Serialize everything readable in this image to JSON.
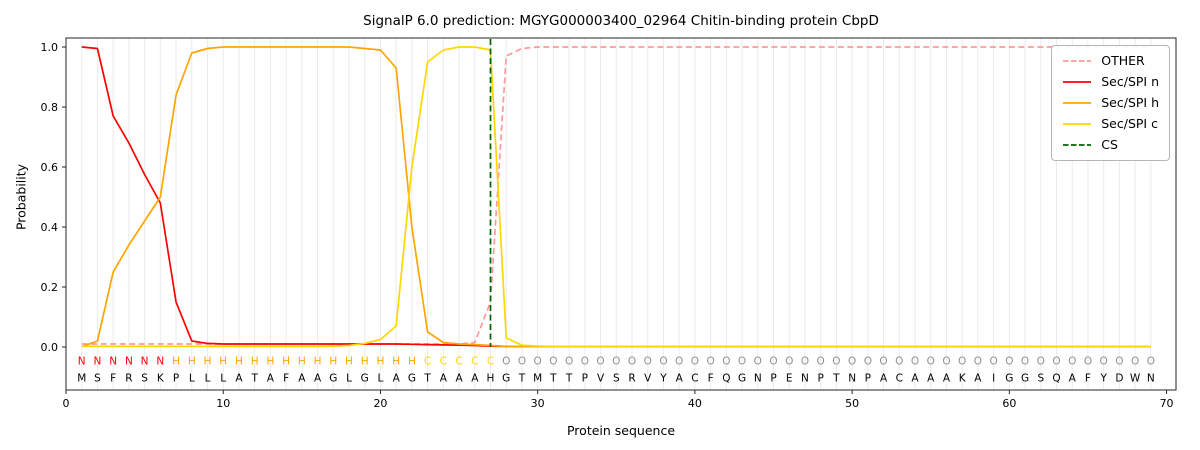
{
  "title": "SignalP 6.0 prediction: MGYG000003400_02964 Chitin-binding protein CbpD",
  "chart_data": {
    "type": "line",
    "title": "SignalP 6.0 prediction: MGYG000003400_02964 Chitin-binding protein CbpD",
    "xlabel": "Protein sequence",
    "ylabel": "Probability",
    "xlim": [
      0,
      70.6
    ],
    "ylim": [
      -0.1433,
      1.03
    ],
    "x_ticks": [
      0,
      10,
      20,
      30,
      40,
      50,
      60,
      70
    ],
    "y_ticks": [
      0,
      0.2,
      0.4,
      0.6,
      0.8,
      1
    ],
    "grid": "vertical line per residue",
    "grid_color": "#ebebeb",
    "legend_position": "upper right",
    "sequence": "MSFRSKPLLLATAFAAGLGLAGTAAAHGTMTTPVSRVYACFQGNPENPTNPACAAAKAIGGSQAFYDWN",
    "region_labels": "NNNNNNHHHHHHHHHHHHHHHHCCCCCOOOOOOOOOOOOOOOOOOOOOOOOOOOOOOOOOOOOOOOOOO",
    "label_colors": {
      "N": "#ff0000",
      "H": "#ffa500",
      "C": "#ffd700",
      "O": "#909090"
    },
    "sequence_color": "#000000",
    "series": [
      {
        "name": "OTHER",
        "color": "#ff9999",
        "style": "dashed",
        "values": [
          0.01,
          0.01,
          0.01,
          0.01,
          0.01,
          0.01,
          0.01,
          0.01,
          0.01,
          0.01,
          0.01,
          0.01,
          0.01,
          0.01,
          0.01,
          0.01,
          0.01,
          0.01,
          0.01,
          0.01,
          0.01,
          0.01,
          0.01,
          0.01,
          0.01,
          0.015,
          0.15,
          0.97,
          0.995,
          1.0,
          1.0,
          1.0,
          1.0,
          1.0,
          1.0,
          1.0,
          1.0,
          1.0,
          1.0,
          1.0,
          1.0,
          1.0,
          1.0,
          1.0,
          1.0,
          1.0,
          1.0,
          1.0,
          1.0,
          1.0,
          1.0,
          1.0,
          1.0,
          1.0,
          1.0,
          1.0,
          1.0,
          1.0,
          1.0,
          1.0,
          1.0,
          1.0,
          1.0,
          1.0,
          1.0,
          1.0,
          1.0,
          1.0,
          1.0
        ]
      },
      {
        "name": "Sec/SPI n",
        "color": "#ff0000",
        "style": "solid",
        "values": [
          1.0,
          0.995,
          0.77,
          0.68,
          0.575,
          0.48,
          0.15,
          0.02,
          0.012,
          0.01,
          0.01,
          0.01,
          0.01,
          0.01,
          0.01,
          0.01,
          0.01,
          0.01,
          0.01,
          0.01,
          0.01,
          0.009,
          0.008,
          0.007,
          0.006,
          0.005,
          0.003,
          0.002,
          0.001,
          0.001,
          0.001,
          0.001,
          0.001,
          0.001,
          0.001,
          0.001,
          0.001,
          0.001,
          0.001,
          0.001,
          0.001,
          0.001,
          0.001,
          0.001,
          0.001,
          0.001,
          0.001,
          0.001,
          0.001,
          0.001,
          0.001,
          0.001,
          0.001,
          0.001,
          0.001,
          0.001,
          0.001,
          0.001,
          0.001,
          0.001,
          0.001,
          0.001,
          0.001,
          0.001,
          0.001,
          0.001,
          0.001,
          0.001,
          0.001
        ]
      },
      {
        "name": "Sec/SPI h",
        "color": "#ffa500",
        "style": "solid",
        "values": [
          0.001,
          0.02,
          0.25,
          0.34,
          0.42,
          0.5,
          0.84,
          0.98,
          0.995,
          1.0,
          1.0,
          1.0,
          1.0,
          1.0,
          1.0,
          1.0,
          1.0,
          1.0,
          0.995,
          0.99,
          0.93,
          0.4,
          0.05,
          0.015,
          0.01,
          0.008,
          0.005,
          0.002,
          0.001,
          0.001,
          0.001,
          0.001,
          0.001,
          0.001,
          0.001,
          0.001,
          0.001,
          0.001,
          0.001,
          0.001,
          0.001,
          0.001,
          0.001,
          0.001,
          0.001,
          0.001,
          0.001,
          0.001,
          0.001,
          0.001,
          0.001,
          0.001,
          0.001,
          0.001,
          0.001,
          0.001,
          0.001,
          0.001,
          0.001,
          0.001,
          0.001,
          0.001,
          0.001,
          0.001,
          0.001,
          0.001,
          0.001,
          0.001,
          0.001
        ]
      },
      {
        "name": "Sec/SPI c",
        "color": "#ffd700",
        "style": "solid",
        "values": [
          0.002,
          0.002,
          0.002,
          0.002,
          0.002,
          0.002,
          0.002,
          0.002,
          0.002,
          0.002,
          0.002,
          0.002,
          0.002,
          0.002,
          0.002,
          0.002,
          0.003,
          0.005,
          0.012,
          0.025,
          0.07,
          0.6,
          0.95,
          0.99,
          1.0,
          1.0,
          0.99,
          0.03,
          0.006,
          0.003,
          0.002,
          0.002,
          0.002,
          0.002,
          0.002,
          0.002,
          0.002,
          0.002,
          0.002,
          0.002,
          0.002,
          0.002,
          0.002,
          0.002,
          0.002,
          0.002,
          0.002,
          0.002,
          0.002,
          0.002,
          0.002,
          0.002,
          0.002,
          0.002,
          0.002,
          0.002,
          0.002,
          0.002,
          0.002,
          0.002,
          0.002,
          0.002,
          0.002,
          0.002,
          0.002,
          0.002,
          0.002,
          0.002,
          0.002
        ]
      },
      {
        "name": "CS",
        "color": "#006400",
        "style": "dashed",
        "type": "vline",
        "x": 27
      }
    ]
  }
}
